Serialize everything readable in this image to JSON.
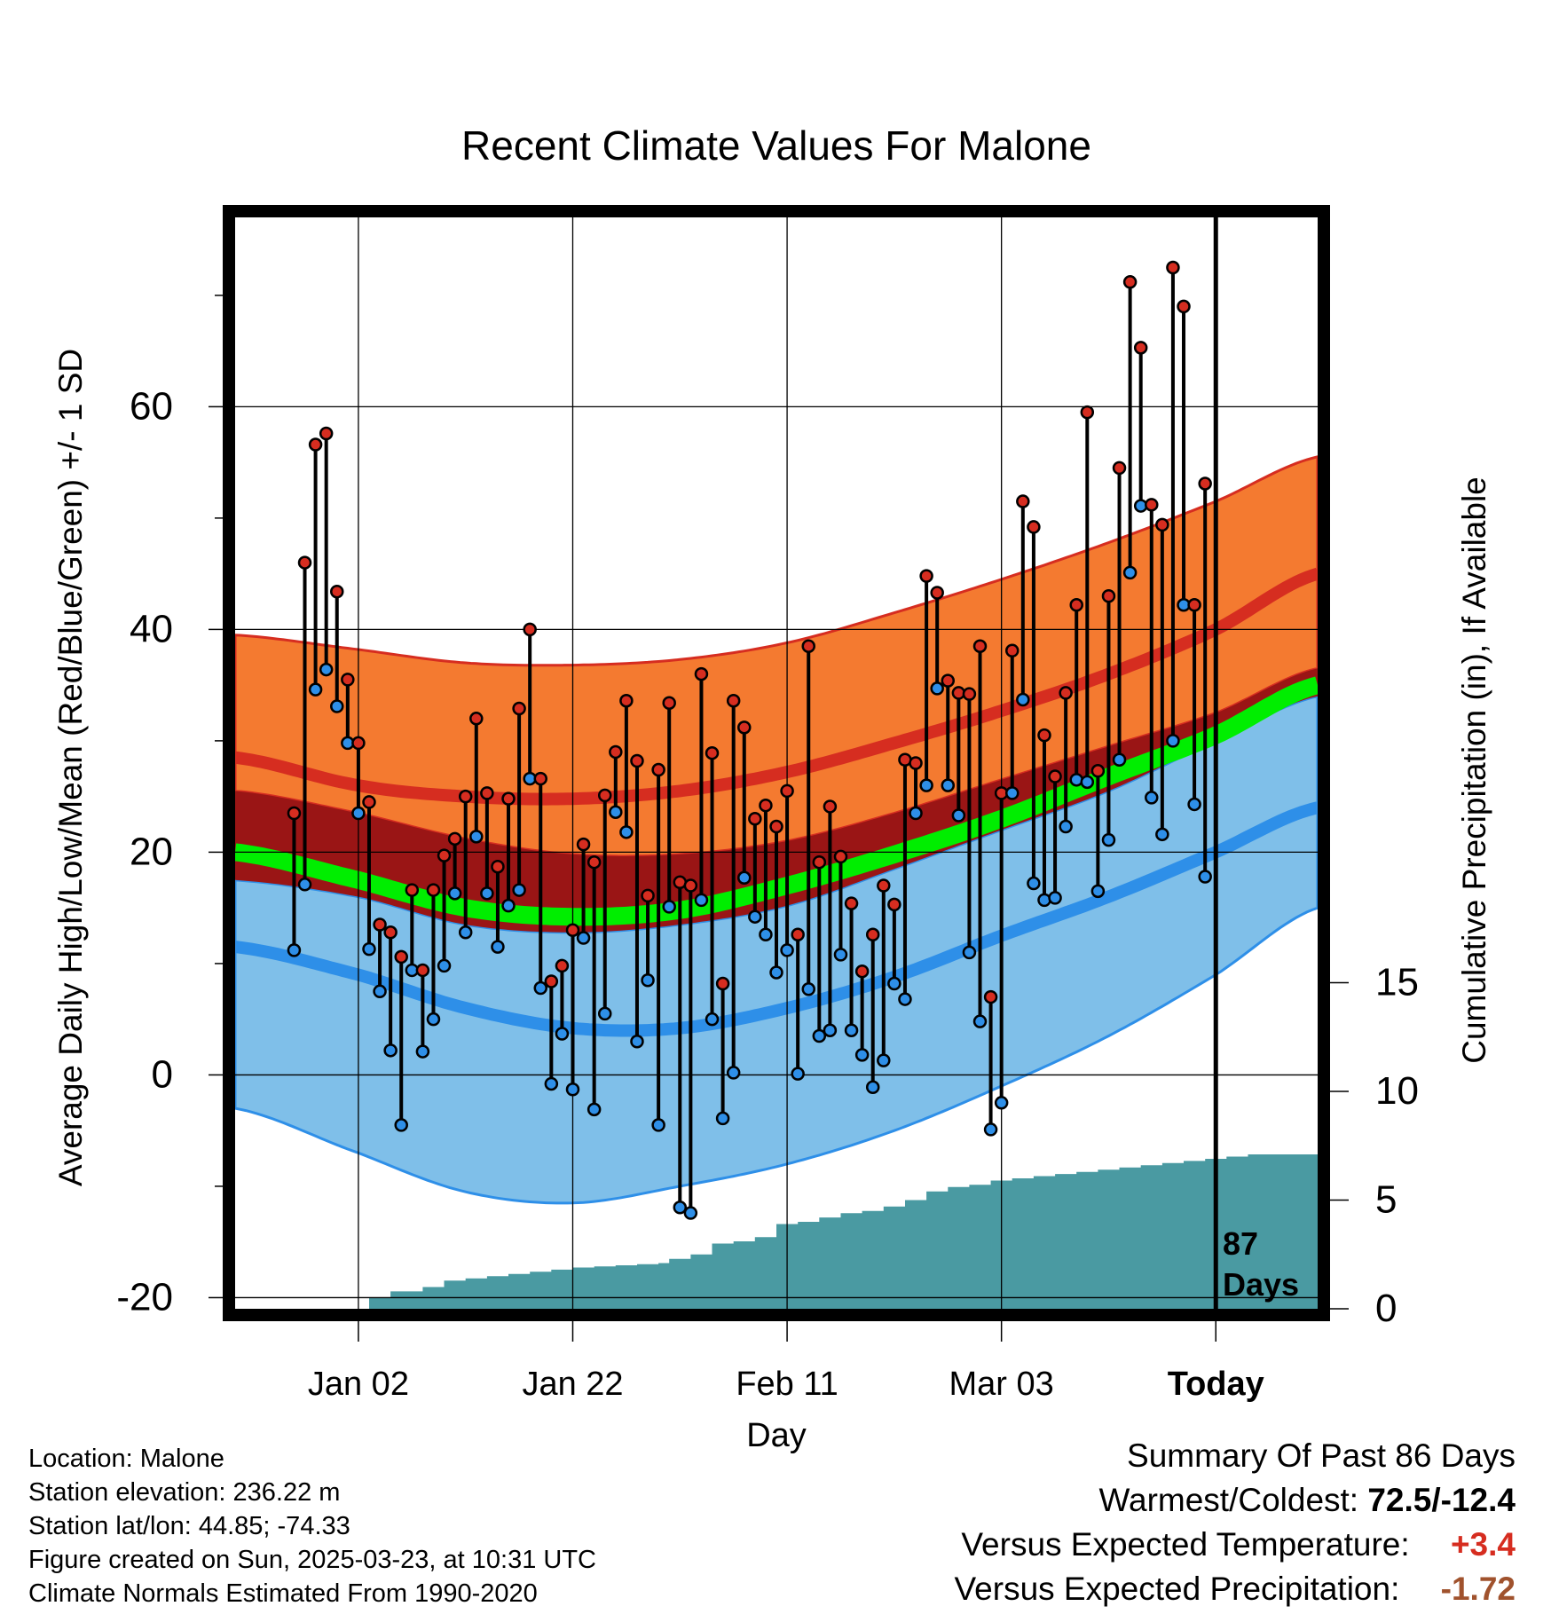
{
  "chart_data": {
    "type": "line",
    "title": "Recent Climate Values For Malone",
    "xlabel": "Day",
    "ylabel": "Average Daily High/Low/Mean (Red/Blue/Green) +/- 1 SD",
    "y2label": "Cumulative Precipitation (in), If Available",
    "ylim": [
      -21,
      77
    ],
    "y2lim": [
      0,
      30
    ],
    "xlim": [
      -11.5,
      89.5
    ],
    "yticks": [
      "-20",
      "0",
      "20",
      "40",
      "60"
    ],
    "y2ticks": [
      "0",
      "5",
      "10",
      "15"
    ],
    "xticks": [
      {
        "day": 0,
        "label": "Jan 02"
      },
      {
        "day": 20,
        "label": "Jan 22"
      },
      {
        "day": 40,
        "label": "Feb 11"
      },
      {
        "day": 60,
        "label": "Mar 03"
      },
      {
        "day": 80,
        "label": "Today"
      }
    ],
    "today_day": 80,
    "annotation": {
      "line1": "87",
      "line2": "Days"
    },
    "normals": {
      "days": [
        -11.5,
        0,
        10,
        20,
        30,
        40,
        50,
        60,
        70,
        80,
        89.5
      ],
      "high_mean": [
        28.5,
        26.0,
        25.0,
        24.8,
        25.5,
        27.2,
        29.8,
        32.7,
        36.0,
        40.0,
        45.0
      ],
      "high_upper": [
        39.5,
        38.2,
        37.0,
        36.8,
        37.3,
        38.8,
        41.5,
        44.5,
        47.8,
        51.5,
        55.5
      ],
      "high_lower": [
        25.5,
        23.5,
        21.2,
        19.8,
        19.8,
        21.0,
        23.5,
        26.5,
        29.5,
        32.5,
        36.5
      ],
      "mean_mean": [
        20.0,
        17.5,
        15.0,
        14.2,
        14.8,
        17.0,
        19.8,
        23.0,
        26.8,
        30.5,
        35.0
      ],
      "low_mean": [
        11.5,
        9.0,
        6.0,
        4.2,
        4.2,
        6.0,
        8.8,
        12.5,
        16.0,
        20.0,
        24.0
      ],
      "low_upper": [
        17.5,
        16.0,
        13.5,
        12.8,
        13.5,
        15.2,
        18.5,
        22.0,
        25.5,
        30.0,
        34.0
      ],
      "low_lower": [
        -3.0,
        -7.0,
        -10.5,
        -11.5,
        -10.0,
        -8.0,
        -5.0,
        -1.0,
        3.5,
        9.0,
        15.0
      ]
    },
    "highs": [
      23.5,
      46.0,
      56.6,
      57.6,
      43.4,
      35.5,
      29.8,
      24.5,
      13.5,
      12.8,
      10.6,
      16.6,
      9.4,
      16.6,
      19.7,
      21.2,
      25.0,
      32.0,
      25.3,
      18.7,
      24.8,
      32.9,
      40.0,
      26.6,
      8.4,
      9.8,
      13.0,
      20.7,
      19.1,
      25.1,
      29.0,
      33.6,
      28.2,
      16.1,
      27.4,
      33.4,
      17.3,
      17.0,
      36.0,
      28.9,
      8.2,
      33.6,
      31.2,
      23.0,
      24.2,
      22.3,
      25.5,
      12.6,
      38.5,
      19.1,
      24.1,
      19.6,
      15.4,
      9.3,
      12.6,
      17.0,
      15.3,
      28.3,
      28.0,
      44.8,
      43.3,
      35.4,
      34.3,
      34.2,
      38.5,
      7.0,
      25.3,
      38.1,
      51.5,
      49.2,
      30.5,
      26.8,
      34.3,
      42.2,
      59.5,
      27.3,
      43.0,
      54.5,
      71.2,
      65.3,
      51.2,
      49.4,
      72.5,
      69.0,
      42.2,
      53.1
    ],
    "lows": [
      11.2,
      17.1,
      34.6,
      36.4,
      33.1,
      29.8,
      23.5,
      11.3,
      7.5,
      2.2,
      -4.5,
      9.4,
      2.1,
      5.0,
      9.8,
      16.3,
      12.8,
      21.4,
      16.3,
      11.5,
      15.2,
      16.6,
      26.6,
      7.8,
      -0.8,
      3.7,
      -1.3,
      12.3,
      -3.1,
      5.5,
      23.6,
      21.8,
      3.0,
      8.5,
      -4.5,
      15.1,
      -11.9,
      -12.4,
      15.7,
      5.0,
      -3.9,
      0.2,
      17.7,
      14.2,
      12.6,
      9.2,
      11.2,
      0.1,
      7.7,
      3.5,
      4.0,
      10.8,
      4.0,
      1.8,
      -1.1,
      1.3,
      8.2,
      6.8,
      23.5,
      26.0,
      34.7,
      26.0,
      23.3,
      11.0,
      4.8,
      -4.9,
      -2.5,
      25.3,
      33.7,
      17.2,
      15.7,
      15.9,
      22.3,
      26.5,
      26.3,
      16.5,
      21.1,
      28.3,
      45.1,
      51.1,
      24.9,
      21.6,
      30.0,
      42.2,
      24.3,
      17.8
    ],
    "precip": {
      "days": [
        -1.5,
        1,
        3,
        6,
        8,
        10,
        12,
        14,
        16,
        18,
        20,
        22,
        24,
        26,
        28,
        29,
        31,
        33,
        35,
        37,
        39,
        41,
        43,
        45,
        47,
        49,
        51,
        53,
        55,
        57,
        59,
        61,
        63,
        65,
        67,
        69,
        71,
        73,
        75,
        77,
        79,
        81,
        83,
        86,
        89.5
      ],
      "values": [
        0,
        0.5,
        0.8,
        1.0,
        1.3,
        1.4,
        1.5,
        1.6,
        1.7,
        1.8,
        1.9,
        1.95,
        2.0,
        2.05,
        2.1,
        2.3,
        2.5,
        3.0,
        3.1,
        3.3,
        3.9,
        4.0,
        4.2,
        4.4,
        4.5,
        4.7,
        5.0,
        5.4,
        5.6,
        5.7,
        5.9,
        6.0,
        6.1,
        6.2,
        6.3,
        6.4,
        6.5,
        6.6,
        6.7,
        6.8,
        6.9,
        7.0,
        7.1,
        7.1,
        7.1
      ]
    }
  },
  "info": {
    "location": "Location: Malone",
    "elevation": "Station elevation: 236.22 m",
    "latlon": "Station lat/lon: 44.85; -74.33",
    "created": "Figure created on Sun, 2025-03-23, at 10:31 UTC",
    "normals": "Climate Normals Estimated From 1990-2020"
  },
  "summary": {
    "title": "Summary Of Past 86 Days",
    "warm_label": "Warmest/Coldest:",
    "warm_value": "72.5/-12.4",
    "temp_label": "Versus Expected Temperature:",
    "temp_value": "+3.4",
    "precip_label": "Versus Expected Precipitation:",
    "precip_value": "-1.72"
  },
  "colors": {
    "high_band": "#f47a30",
    "high_line": "#d62d20",
    "overlap_band": "#9a1515",
    "low_band": "#7fbfe9",
    "low_line": "#2e8fe8",
    "mean_line": "#00ee00",
    "precip": "#4a9aa2",
    "high_dot": "#d62d20",
    "low_dot": "#2e8fe8"
  }
}
